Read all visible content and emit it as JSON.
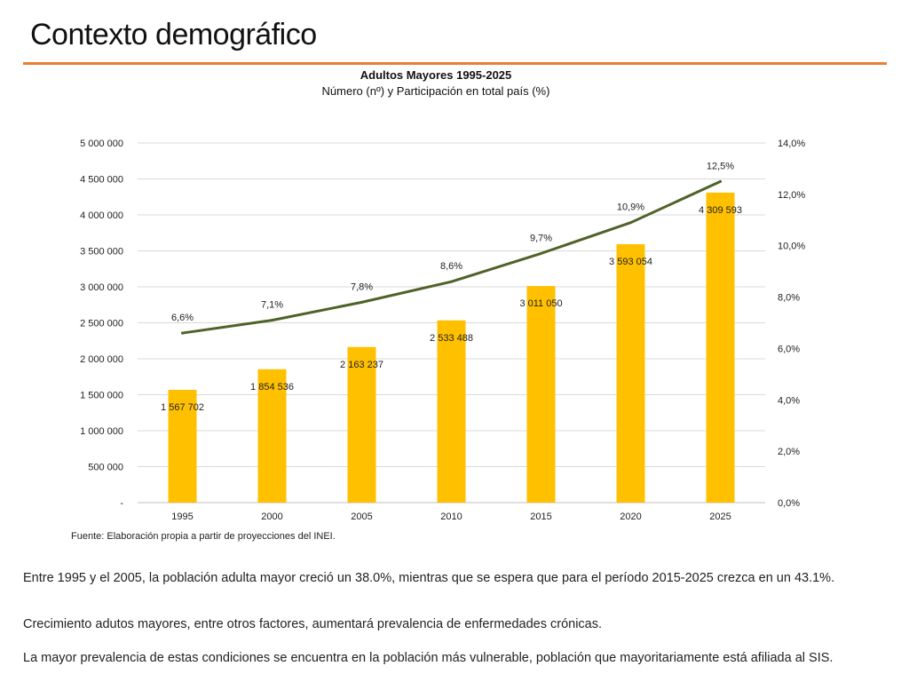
{
  "page": {
    "title": "Contexto demográfico",
    "source": "Fuente: Elaboración propia a partir de proyecciones del INEI.",
    "paragraphs": [
      "Entre 1995 y el 2005, la población adulta mayor creció un 38.0%, mientras que se espera que para el período 2015-2025 crezca en un 43.1%.",
      "Crecimiento adutos mayores, entre otros factores, aumentará prevalencia de enfermedades crónicas.",
      "La mayor prevalencia de estas condiciones se encuentra en la población más vulnerable, población que mayoritariamente está afiliada al SIS."
    ]
  },
  "colors": {
    "accent": "#ed7d31",
    "bar": "#ffc000",
    "line": "#4f6228",
    "grid": "#d9d9d9"
  },
  "chart_data": {
    "type": "bar+line",
    "title": "Adultos Mayores 1995-2025",
    "subtitle": "Número (nº) y Participación en total país (%)",
    "categories": [
      "1995",
      "2000",
      "2005",
      "2010",
      "2015",
      "2020",
      "2025"
    ],
    "series": [
      {
        "name": "Número",
        "type": "bar",
        "axis": "left",
        "values": [
          1567702,
          1854536,
          2163237,
          2533488,
          3011050,
          3593054,
          4309593
        ],
        "labels": [
          "1 567 702",
          "1 854 536",
          "2 163 237",
          "2 533 488",
          "3 011 050",
          "3 593 054",
          "4 309 593"
        ]
      },
      {
        "name": "Participación",
        "type": "line",
        "axis": "right",
        "values": [
          6.6,
          7.1,
          7.8,
          8.6,
          9.7,
          10.9,
          12.5
        ],
        "labels": [
          "6,6%",
          "7,1%",
          "7,8%",
          "8,6%",
          "9,7%",
          "10,9%",
          "12,5%"
        ]
      }
    ],
    "y_left": {
      "range": [
        0,
        5000000
      ],
      "ticks": [
        0,
        500000,
        1000000,
        1500000,
        2000000,
        2500000,
        3000000,
        3500000,
        4000000,
        4500000,
        5000000
      ],
      "tick_labels": [
        "-",
        "500 000",
        "1 000 000",
        "1 500 000",
        "2 000 000",
        "2 500 000",
        "3 000 000",
        "3 500 000",
        "4 000 000",
        "4 500 000",
        "5 000 000"
      ]
    },
    "y_right": {
      "range": [
        0,
        14
      ],
      "ticks": [
        0,
        2,
        4,
        6,
        8,
        10,
        12,
        14
      ],
      "tick_labels": [
        "0,0%",
        "2,0%",
        "4,0%",
        "6,0%",
        "8,0%",
        "10,0%",
        "12,0%",
        "14,0%"
      ]
    },
    "grid": true
  }
}
